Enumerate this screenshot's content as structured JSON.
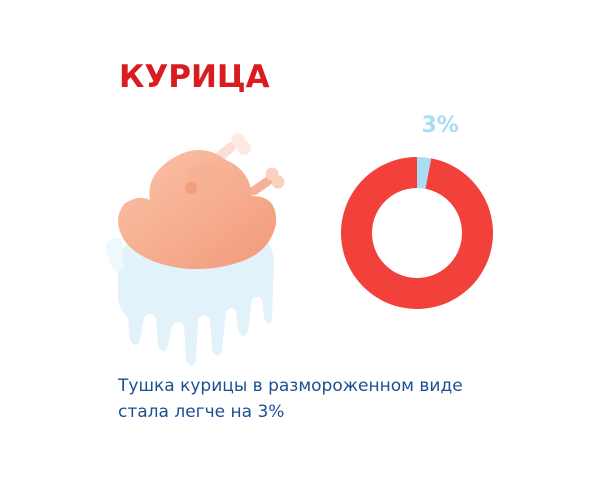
{
  "chart_data": {
    "type": "donut",
    "title": "КУРИЦА",
    "categories": [
      null,
      null
    ],
    "values": [
      3,
      97
    ],
    "value_labels": [
      "3%",
      null
    ],
    "colors": [
      "#a9dcf5",
      "#f2403a"
    ],
    "start_angle": 0,
    "direction": "clockwise",
    "caption_lines": [
      "Тушка курицы в размороженном виде",
      "стала легче на 3%"
    ]
  }
}
